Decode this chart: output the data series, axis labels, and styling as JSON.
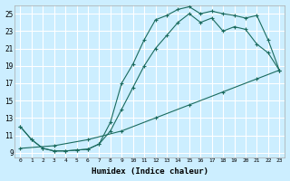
{
  "xlabel": "Humidex (Indice chaleur)",
  "bg_color": "#cceeff",
  "grid_color": "#ffffff",
  "line_color": "#1a6b5e",
  "xlim": [
    -0.5,
    23.5
  ],
  "ylim": [
    8.5,
    26.0
  ],
  "xticks": [
    0,
    1,
    2,
    3,
    4,
    5,
    6,
    7,
    8,
    9,
    10,
    11,
    12,
    13,
    14,
    15,
    16,
    17,
    18,
    19,
    20,
    21,
    22,
    23
  ],
  "yticks": [
    9,
    11,
    13,
    15,
    17,
    19,
    21,
    23,
    25
  ],
  "line1_x": [
    0,
    1,
    2,
    3,
    4,
    5,
    6,
    7,
    8,
    9,
    10,
    11,
    12,
    13,
    14,
    15,
    16,
    17,
    18,
    19,
    20,
    21,
    22,
    23
  ],
  "line1_y": [
    12.0,
    10.5,
    9.5,
    9.2,
    9.2,
    9.3,
    9.4,
    10.0,
    12.5,
    17.0,
    19.2,
    22.0,
    24.3,
    24.8,
    25.5,
    25.8,
    25.0,
    25.3,
    25.0,
    24.8,
    24.5,
    24.8,
    22.0,
    18.5
  ],
  "line2_x": [
    0,
    1,
    2,
    3,
    4,
    5,
    6,
    7,
    8,
    9,
    10,
    11,
    12,
    13,
    14,
    15,
    16,
    17,
    18,
    19,
    20,
    21,
    22,
    23
  ],
  "line2_y": [
    12.0,
    10.5,
    9.5,
    9.2,
    9.2,
    9.3,
    9.4,
    10.0,
    11.5,
    14.0,
    16.5,
    19.0,
    21.0,
    22.5,
    24.0,
    25.0,
    24.0,
    24.5,
    23.0,
    23.5,
    23.2,
    21.5,
    20.5,
    18.5
  ],
  "line3_x": [
    0,
    3,
    6,
    9,
    12,
    15,
    18,
    21,
    23
  ],
  "line3_y": [
    9.5,
    9.8,
    10.5,
    11.5,
    13.0,
    14.5,
    16.0,
    17.5,
    18.5
  ]
}
